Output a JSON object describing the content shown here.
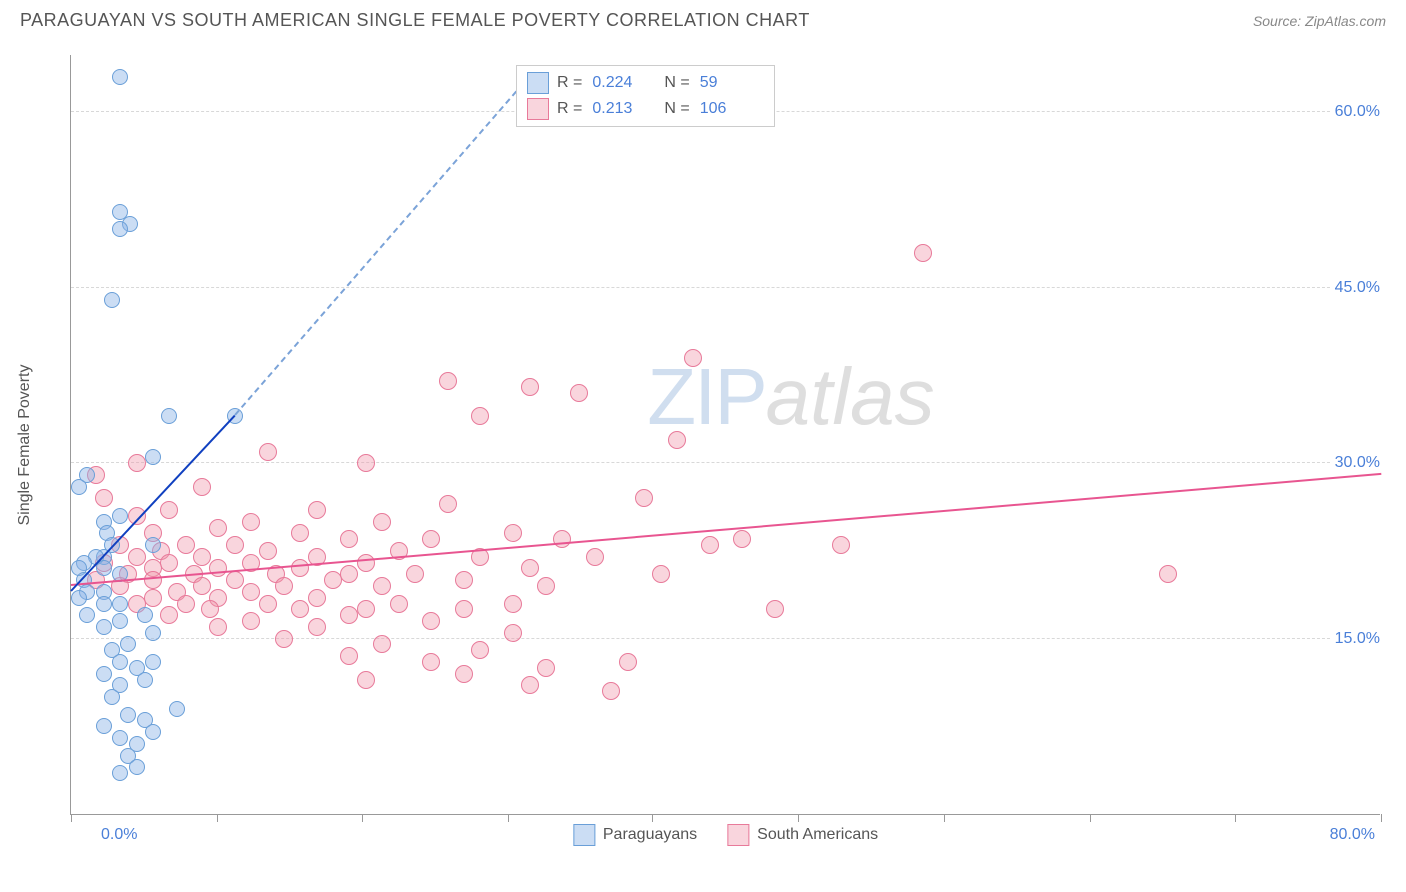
{
  "header": {
    "title": "PARAGUAYAN VS SOUTH AMERICAN SINGLE FEMALE POVERTY CORRELATION CHART",
    "source": "Source: ZipAtlas.com"
  },
  "chart": {
    "type": "scatter",
    "ylabel": "Single Female Poverty",
    "xlim": [
      0,
      80
    ],
    "ylim": [
      0,
      65
    ],
    "xtick_label_min": "0.0%",
    "xtick_label_max": "80.0%",
    "yticks": [
      {
        "v": 15,
        "label": "15.0%"
      },
      {
        "v": 30,
        "label": "30.0%"
      },
      {
        "v": 45,
        "label": "45.0%"
      },
      {
        "v": 60,
        "label": "60.0%"
      }
    ],
    "xtick_positions": [
      0,
      8.9,
      17.8,
      26.7,
      35.5,
      44.4,
      53.3,
      62.2,
      71.1,
      80
    ],
    "grid_color": "#d8d8d8",
    "axis_color": "#999999",
    "background_color": "#ffffff",
    "label_color": "#4a7fd8",
    "text_color": "#555555",
    "watermark": {
      "zip": "ZIP",
      "atlas": "atlas"
    },
    "series": [
      {
        "id": "paraguayans",
        "label": "Paraguayans",
        "marker_fill": "rgba(140,180,230,0.45)",
        "marker_stroke": "#6a9fd8",
        "marker_radius": 8,
        "trend_color": "#1040c0",
        "trend_dash_color": "#7ba3d8",
        "trend": {
          "x1": 0,
          "y1": 19,
          "x2_solid": 10,
          "y2_solid": 34,
          "x2_dash": 28,
          "y2_dash": 63
        },
        "R": "0.224",
        "N": "59",
        "points": [
          [
            3,
            63
          ],
          [
            3,
            51.5
          ],
          [
            3.6,
            50.5
          ],
          [
            3,
            50
          ],
          [
            2.5,
            44
          ],
          [
            6,
            34
          ],
          [
            10,
            34
          ],
          [
            5,
            30.5
          ],
          [
            1,
            29
          ],
          [
            0.5,
            28
          ],
          [
            3,
            25.5
          ],
          [
            2,
            25
          ],
          [
            2.2,
            24
          ],
          [
            5,
            23
          ],
          [
            2.5,
            23
          ],
          [
            2,
            22
          ],
          [
            1.5,
            22
          ],
          [
            0.8,
            21.5
          ],
          [
            2,
            21
          ],
          [
            0.5,
            21
          ],
          [
            3,
            20.5
          ],
          [
            0.8,
            20
          ],
          [
            2,
            19
          ],
          [
            1,
            19
          ],
          [
            0.5,
            18.5
          ],
          [
            3,
            18
          ],
          [
            2,
            18
          ],
          [
            4.5,
            17
          ],
          [
            1,
            17
          ],
          [
            3,
            16.5
          ],
          [
            2,
            16
          ],
          [
            5,
            15.5
          ],
          [
            3.5,
            14.5
          ],
          [
            2.5,
            14
          ],
          [
            5,
            13
          ],
          [
            3,
            13
          ],
          [
            4,
            12.5
          ],
          [
            2,
            12
          ],
          [
            4.5,
            11.5
          ],
          [
            3,
            11
          ],
          [
            2.5,
            10
          ],
          [
            6.5,
            9
          ],
          [
            3.5,
            8.5
          ],
          [
            4.5,
            8
          ],
          [
            2,
            7.5
          ],
          [
            5,
            7
          ],
          [
            3,
            6.5
          ],
          [
            4,
            6
          ],
          [
            3.5,
            5
          ],
          [
            4,
            4
          ],
          [
            3,
            3.5
          ]
        ]
      },
      {
        "id": "south_americans",
        "label": "South Americans",
        "marker_fill": "rgba(240,150,170,0.40)",
        "marker_stroke": "#e87a9a",
        "marker_radius": 9,
        "trend_color": "#e85590",
        "trend": {
          "x1": 0,
          "y1": 19.5,
          "x2_solid": 80,
          "y2_solid": 29
        },
        "R": "0.213",
        "N": "106",
        "points": [
          [
            52,
            48
          ],
          [
            38,
            39
          ],
          [
            23,
            37
          ],
          [
            28,
            36.5
          ],
          [
            31,
            36
          ],
          [
            25,
            34
          ],
          [
            37,
            32
          ],
          [
            12,
            31
          ],
          [
            18,
            30
          ],
          [
            4,
            30
          ],
          [
            1.5,
            29
          ],
          [
            8,
            28
          ],
          [
            35,
            27
          ],
          [
            2,
            27
          ],
          [
            23,
            26.5
          ],
          [
            15,
            26
          ],
          [
            6,
            26
          ],
          [
            4,
            25.5
          ],
          [
            11,
            25
          ],
          [
            19,
            25
          ],
          [
            9,
            24.5
          ],
          [
            27,
            24
          ],
          [
            14,
            24
          ],
          [
            5,
            24
          ],
          [
            30,
            23.5
          ],
          [
            41,
            23.5
          ],
          [
            22,
            23.5
          ],
          [
            17,
            23.5
          ],
          [
            7,
            23
          ],
          [
            39,
            23
          ],
          [
            47,
            23
          ],
          [
            3,
            23
          ],
          [
            10,
            23
          ],
          [
            12,
            22.5
          ],
          [
            20,
            22.5
          ],
          [
            5.5,
            22.5
          ],
          [
            32,
            22
          ],
          [
            25,
            22
          ],
          [
            15,
            22
          ],
          [
            8,
            22
          ],
          [
            4,
            22
          ],
          [
            6,
            21.5
          ],
          [
            11,
            21.5
          ],
          [
            18,
            21.5
          ],
          [
            2,
            21.5
          ],
          [
            28,
            21
          ],
          [
            14,
            21
          ],
          [
            9,
            21
          ],
          [
            5,
            21
          ],
          [
            67,
            20.5
          ],
          [
            3.5,
            20.5
          ],
          [
            7.5,
            20.5
          ],
          [
            12.5,
            20.5
          ],
          [
            21,
            20.5
          ],
          [
            17,
            20.5
          ],
          [
            36,
            20.5
          ],
          [
            1.5,
            20
          ],
          [
            5,
            20
          ],
          [
            10,
            20
          ],
          [
            16,
            20
          ],
          [
            24,
            20
          ],
          [
            3,
            19.5
          ],
          [
            8,
            19.5
          ],
          [
            13,
            19.5
          ],
          [
            19,
            19.5
          ],
          [
            29,
            19.5
          ],
          [
            6.5,
            19
          ],
          [
            11,
            19
          ],
          [
            5,
            18.5
          ],
          [
            15,
            18.5
          ],
          [
            9,
            18.5
          ],
          [
            7,
            18
          ],
          [
            12,
            18
          ],
          [
            20,
            18
          ],
          [
            27,
            18
          ],
          [
            4,
            18
          ],
          [
            8.5,
            17.5
          ],
          [
            14,
            17.5
          ],
          [
            18,
            17.5
          ],
          [
            24,
            17.5
          ],
          [
            6,
            17
          ],
          [
            17,
            17
          ],
          [
            11,
            16.5
          ],
          [
            22,
            16.5
          ],
          [
            43,
            17.5
          ],
          [
            9,
            16
          ],
          [
            15,
            16
          ],
          [
            27,
            15.5
          ],
          [
            13,
            15
          ],
          [
            19,
            14.5
          ],
          [
            25,
            14
          ],
          [
            17,
            13.5
          ],
          [
            22,
            13
          ],
          [
            34,
            13
          ],
          [
            29,
            12.5
          ],
          [
            24,
            12
          ],
          [
            18,
            11.5
          ],
          [
            28,
            11
          ],
          [
            33,
            10.5
          ]
        ]
      }
    ],
    "legend_top": {
      "R_label": "R =",
      "N_label": "N ="
    }
  }
}
